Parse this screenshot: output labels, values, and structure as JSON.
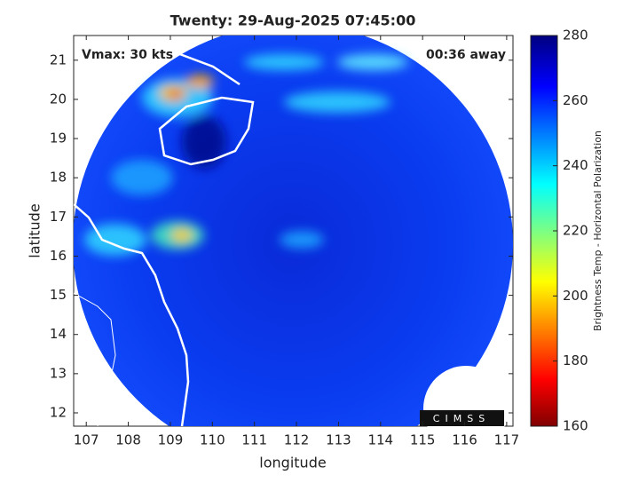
{
  "title": "Twenty: 29-Aug-2025 07:45:00",
  "annotations": {
    "vmax": "Vmax: 30 kts",
    "time_away": "00:36 away"
  },
  "x_axis": {
    "label": "longitude",
    "lim": [
      106.7,
      117.15
    ],
    "ticks": [
      107,
      108,
      109,
      110,
      111,
      112,
      113,
      114,
      115,
      116,
      117
    ]
  },
  "y_axis": {
    "label": "latitude",
    "lim": [
      11.66,
      21.63
    ],
    "ticks": [
      12,
      13,
      14,
      15,
      16,
      17,
      18,
      19,
      20,
      21
    ]
  },
  "colorbar": {
    "label": "Brightness Temp - Horizontal Polarization",
    "lim": [
      160,
      280
    ],
    "ticks": [
      160,
      180,
      200,
      220,
      240,
      260,
      280
    ]
  },
  "logo": "CIMSS"
}
